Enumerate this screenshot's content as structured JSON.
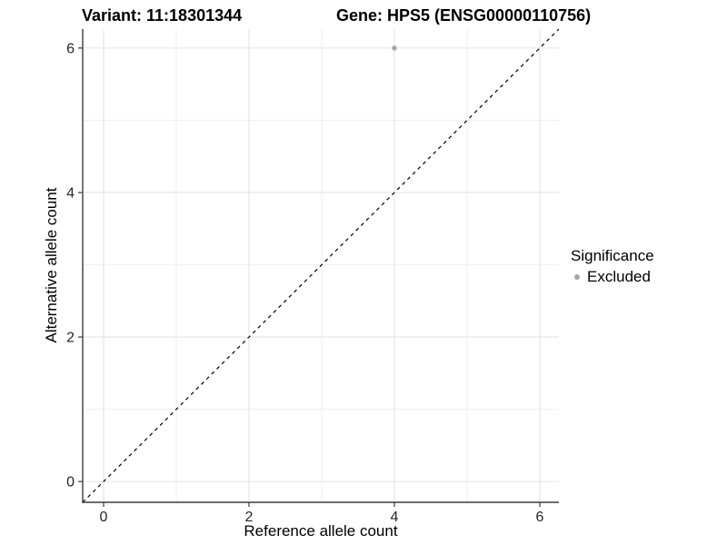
{
  "titles": {
    "variant": "Variant: 11:18301344",
    "gene": "Gene: HPS5 (ENSG00000110756)"
  },
  "axes": {
    "x_label": "Reference allele count",
    "y_label": "Alternative allele count"
  },
  "legend": {
    "title": "Significance",
    "items": [
      {
        "label": "Excluded",
        "color": "#a6a6a6",
        "marker": "circle"
      }
    ]
  },
  "colors": {
    "background": "#ffffff",
    "axis_line": "#3c3c3c",
    "tick": "#3c3c3c",
    "tick_label": "#262626",
    "grid_major": "#e4e4e4",
    "grid_minor": "#efefef",
    "identity_line": "#000000",
    "point": "#a6a6a6"
  },
  "chart_data": {
    "type": "scatter",
    "title": "Variant: 11:18301344    Gene: HPS5 (ENSG00000110756)",
    "xlabel": "Reference allele count",
    "ylabel": "Alternative allele count",
    "xlim": [
      -0.2875,
      6.2625
    ],
    "ylim": [
      -0.2875,
      6.2625
    ],
    "x_major_ticks": [
      0,
      2,
      4,
      6
    ],
    "x_tick_labels": [
      "0",
      "2",
      "4",
      "6"
    ],
    "y_major_ticks": [
      0,
      2,
      4,
      6
    ],
    "y_tick_labels": [
      "0",
      "2",
      "4",
      "6"
    ],
    "x_minor_gridlines": [
      1,
      3,
      5
    ],
    "y_minor_gridlines": [
      1,
      3,
      5
    ],
    "grid": true,
    "legend_position": "right",
    "series": [
      {
        "name": "Excluded",
        "color": "#a6a6a6",
        "points": [
          {
            "x": 4,
            "y": 6
          }
        ]
      }
    ],
    "reference_line": {
      "kind": "identity",
      "slope": 1,
      "intercept": 0,
      "style": "dashed",
      "color": "#000000"
    }
  }
}
